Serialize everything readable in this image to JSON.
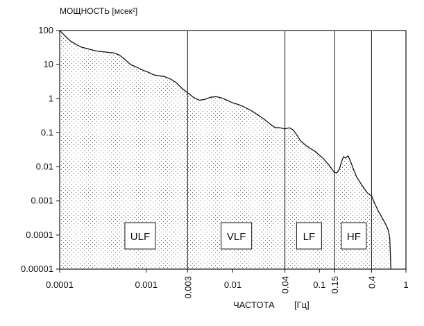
{
  "chart_data": {
    "type": "area",
    "title": "",
    "ylabel": "МОЩНОСТЬ [мсек²]",
    "xlabel": "ЧАСТОТА",
    "xunit": "[Гц]",
    "xscale": "log",
    "yscale": "log",
    "xlim": [
      0.0001,
      1
    ],
    "ylim": [
      1e-05,
      100
    ],
    "x_ticks": [
      "0.0001",
      "0.001",
      "0.01",
      "0.1",
      "1"
    ],
    "y_ticks": [
      "100",
      "10",
      "1",
      "0.1",
      "0.01",
      "0.001",
      "0.0001",
      "0.00001"
    ],
    "boundary_ticks": [
      "0.003",
      "0.04",
      "0.15",
      "0.4"
    ],
    "boundaries": [
      0.003,
      0.04,
      0.15,
      0.4
    ],
    "bands": [
      {
        "label": "ULF",
        "x_center": 0.00085
      },
      {
        "label": "VLF",
        "x_center": 0.011
      },
      {
        "label": "LF",
        "x_center": 0.076
      },
      {
        "label": "HF",
        "x_center": 0.25
      }
    ],
    "grid": false,
    "fill": "dotted",
    "series": [
      {
        "x": [
          0.0001,
          0.000115,
          0.000132,
          0.000152,
          0.000176,
          0.000203,
          0.000234,
          0.00027,
          0.00031,
          0.00036,
          0.00042,
          0.00049,
          0.00057,
          0.00066,
          0.00077,
          0.0009,
          0.00105,
          0.00122,
          0.0014,
          0.0016,
          0.0019,
          0.0022,
          0.0026,
          0.003,
          0.0035,
          0.0041,
          0.0047,
          0.0055,
          0.0064,
          0.0074,
          0.0086,
          0.01,
          0.0115,
          0.013,
          0.015,
          0.017,
          0.02,
          0.023,
          0.027,
          0.031,
          0.035,
          0.04,
          0.045,
          0.05,
          0.055,
          0.06,
          0.068,
          0.078,
          0.09,
          0.1,
          0.11,
          0.12,
          0.13,
          0.14,
          0.15,
          0.16,
          0.17,
          0.18,
          0.19,
          0.2,
          0.215,
          0.23,
          0.25,
          0.27,
          0.3,
          0.33,
          0.36,
          0.4,
          0.44,
          0.48,
          0.52,
          0.56,
          0.6,
          0.63,
          0.65,
          0.67
        ],
        "y": [
          100,
          70,
          50,
          40,
          33,
          30,
          27,
          25,
          24,
          23,
          22,
          19,
          14,
          10,
          8.5,
          7,
          6,
          5,
          4.7,
          4.5,
          3.8,
          3,
          2,
          1.5,
          1.1,
          0.9,
          0.95,
          1.1,
          1.15,
          1.05,
          0.9,
          0.75,
          0.68,
          0.6,
          0.5,
          0.42,
          0.32,
          0.25,
          0.18,
          0.14,
          0.14,
          0.13,
          0.14,
          0.12,
          0.085,
          0.06,
          0.045,
          0.035,
          0.028,
          0.022,
          0.018,
          0.014,
          0.011,
          0.0085,
          0.0068,
          0.0068,
          0.0085,
          0.014,
          0.02,
          0.018,
          0.021,
          0.014,
          0.008,
          0.005,
          0.0033,
          0.0023,
          0.0017,
          0.0014,
          0.0008,
          0.0005,
          0.00035,
          0.00025,
          0.00018,
          0.00013,
          8e-05,
          1e-05
        ]
      }
    ]
  }
}
